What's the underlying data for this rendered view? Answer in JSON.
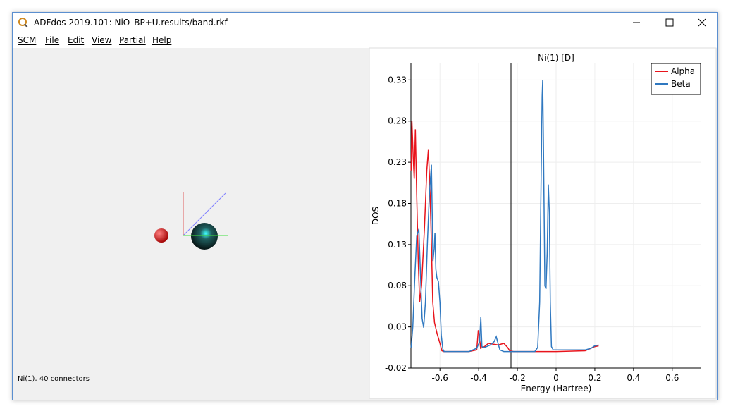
{
  "window": {
    "title": "ADFdos 2019.101: NiO_BP+U.results/band.rkf"
  },
  "menu": [
    "SCM",
    "File",
    "Edit",
    "View",
    "Partial",
    "Help"
  ],
  "status": "Ni(1), 40 connectors",
  "chart_data": {
    "type": "line",
    "title": "Ni(1) [D]",
    "x_label": "Energy (Hartree)",
    "y_label": "DOS",
    "xlim": [
      -0.75,
      0.75
    ],
    "ylim": [
      -0.02,
      0.35
    ],
    "xticks": [
      -0.6,
      -0.4,
      -0.2,
      0,
      0.2,
      0.4,
      0.6
    ],
    "yticks": [
      -0.02,
      0.03,
      0.08,
      0.13,
      0.18,
      0.23,
      0.28,
      0.33
    ],
    "grid": true,
    "legend": "upper right",
    "vlines": [
      -0.233
    ],
    "series": [
      {
        "name": "Alpha",
        "color": "#e8141c",
        "x": [
          -0.749,
          -0.745,
          -0.738,
          -0.733,
          -0.727,
          -0.72,
          -0.712,
          -0.705,
          -0.695,
          -0.68,
          -0.668,
          -0.66,
          -0.652,
          -0.645,
          -0.637,
          -0.628,
          -0.615,
          -0.6,
          -0.59,
          -0.58,
          -0.45,
          -0.41,
          -0.402,
          -0.397,
          -0.39,
          -0.37,
          -0.35,
          -0.3,
          -0.27,
          -0.25,
          -0.24,
          -0.22,
          0,
          0.15,
          0.18,
          0.2,
          0.22
        ],
        "values": [
          0.22,
          0.28,
          0.235,
          0.21,
          0.27,
          0.19,
          0.11,
          0.06,
          0.08,
          0.15,
          0.22,
          0.245,
          0.2,
          0.14,
          0.06,
          0.035,
          0.022,
          0.01,
          0.001,
          0.0,
          0.0,
          0.002,
          0.026,
          0.02,
          0.004,
          0.006,
          0.01,
          0.008,
          0.01,
          0.005,
          0.001,
          0.0,
          0.0,
          0.001,
          0.004,
          0.006,
          0.007
        ]
      },
      {
        "name": "Beta",
        "color": "#2f78c0",
        "x": [
          -0.749,
          -0.74,
          -0.73,
          -0.72,
          -0.709,
          -0.7,
          -0.692,
          -0.684,
          -0.675,
          -0.665,
          -0.655,
          -0.644,
          -0.636,
          -0.63,
          -0.626,
          -0.621,
          -0.616,
          -0.608,
          -0.6,
          -0.593,
          -0.585,
          -0.578,
          -0.45,
          -0.41,
          -0.395,
          -0.389,
          -0.383,
          -0.37,
          -0.34,
          -0.32,
          -0.309,
          -0.3,
          -0.29,
          -0.27,
          -0.23,
          -0.11,
          -0.095,
          -0.085,
          -0.078,
          -0.072,
          -0.069,
          -0.065,
          -0.058,
          -0.052,
          -0.046,
          -0.04,
          -0.035,
          -0.03,
          -0.024,
          -0.015,
          0.1,
          0.15,
          0.18,
          0.2,
          0.22
        ],
        "values": [
          0.005,
          0.03,
          0.09,
          0.14,
          0.149,
          0.09,
          0.04,
          0.029,
          0.06,
          0.13,
          0.19,
          0.227,
          0.11,
          0.125,
          0.144,
          0.1,
          0.09,
          0.085,
          0.06,
          0.02,
          0.003,
          0.0,
          0.0,
          0.004,
          0.012,
          0.042,
          0.006,
          0.005,
          0.008,
          0.012,
          0.018,
          0.01,
          0.002,
          0.0,
          0.0,
          0.0,
          0.005,
          0.06,
          0.2,
          0.31,
          0.33,
          0.25,
          0.08,
          0.076,
          0.12,
          0.203,
          0.17,
          0.06,
          0.006,
          0.002,
          0.002,
          0.002,
          0.004,
          0.007,
          0.008
        ]
      }
    ]
  }
}
